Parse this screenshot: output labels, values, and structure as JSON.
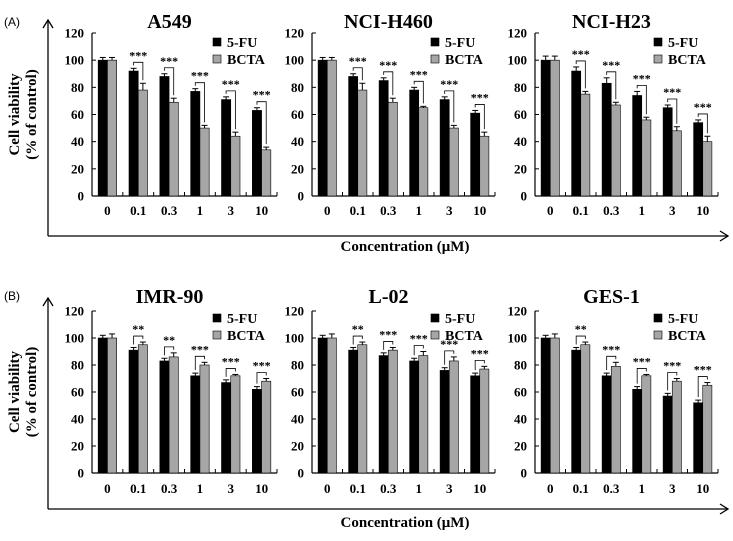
{
  "panel_labels": [
    "(A)",
    "(B)"
  ],
  "ylabel_line1": "Cell viability",
  "ylabel_line2": "(% of control)",
  "xlabel": "Concentration (μM)",
  "colors": {
    "5-FU": "#000000",
    "BCTA": "#a6a6a6"
  },
  "chart_data": [
    {
      "type": "bar",
      "panel": "A",
      "title": "A549",
      "categories": [
        "0",
        "0.1",
        "0.3",
        "1",
        "3",
        "10"
      ],
      "ylim": [
        0,
        120
      ],
      "yticks": [
        0,
        20,
        40,
        60,
        80,
        100,
        120
      ],
      "series": [
        {
          "name": "5-FU",
          "values": [
            100,
            92,
            88,
            77,
            71,
            63
          ],
          "errors": [
            2,
            2,
            2,
            2,
            2,
            2
          ]
        },
        {
          "name": "BCTA",
          "values": [
            100,
            78,
            69,
            50,
            44,
            34
          ],
          "errors": [
            2,
            5,
            3,
            2,
            3,
            2
          ]
        }
      ],
      "significance": [
        "",
        "***",
        "***",
        "***",
        "***",
        "***"
      ]
    },
    {
      "type": "bar",
      "panel": "A",
      "title": "NCI-H460",
      "categories": [
        "0",
        "0.1",
        "0.3",
        "1",
        "3",
        "10"
      ],
      "ylim": [
        0,
        120
      ],
      "yticks": [
        0,
        20,
        40,
        60,
        80,
        100,
        120
      ],
      "series": [
        {
          "name": "5-FU",
          "values": [
            100,
            88,
            85,
            78,
            71,
            61
          ],
          "errors": [
            2,
            2,
            2,
            2,
            2,
            2
          ]
        },
        {
          "name": "BCTA",
          "values": [
            100,
            78,
            69,
            65,
            50,
            44
          ],
          "errors": [
            2,
            5,
            3,
            1,
            2,
            3
          ]
        }
      ],
      "significance": [
        "",
        "***",
        "***",
        "***",
        "***",
        "***"
      ]
    },
    {
      "type": "bar",
      "panel": "A",
      "title": "NCI-H23",
      "categories": [
        "0",
        "0.1",
        "0.3",
        "1",
        "3",
        "10"
      ],
      "ylim": [
        0,
        120
      ],
      "yticks": [
        0,
        20,
        40,
        60,
        80,
        100,
        120
      ],
      "series": [
        {
          "name": "5-FU",
          "values": [
            100,
            92,
            83,
            74,
            65,
            54
          ],
          "errors": [
            3,
            3,
            4,
            3,
            2,
            2
          ]
        },
        {
          "name": "BCTA",
          "values": [
            100,
            75,
            67,
            56,
            48,
            40
          ],
          "errors": [
            3,
            2,
            2,
            2,
            3,
            4
          ]
        }
      ],
      "significance": [
        "",
        "***",
        "***",
        "***",
        "***",
        "***"
      ]
    },
    {
      "type": "bar",
      "panel": "B",
      "title": "IMR-90",
      "categories": [
        "0",
        "0.1",
        "0.3",
        "1",
        "3",
        "10"
      ],
      "ylim": [
        0,
        120
      ],
      "yticks": [
        0,
        20,
        40,
        60,
        80,
        100,
        120
      ],
      "series": [
        {
          "name": "5-FU",
          "values": [
            100,
            91,
            83,
            72,
            67,
            62
          ],
          "errors": [
            2,
            2,
            2,
            2,
            2,
            2
          ]
        },
        {
          "name": "BCTA",
          "values": [
            100,
            95,
            86,
            80,
            72,
            68
          ],
          "errors": [
            3,
            2,
            3,
            2,
            1,
            2
          ]
        }
      ],
      "significance": [
        "",
        "**",
        "**",
        "***",
        "***",
        "***"
      ]
    },
    {
      "type": "bar",
      "panel": "B",
      "title": "L-02",
      "categories": [
        "0",
        "0.1",
        "0.3",
        "1",
        "3",
        "10"
      ],
      "ylim": [
        0,
        120
      ],
      "yticks": [
        0,
        20,
        40,
        60,
        80,
        100,
        120
      ],
      "series": [
        {
          "name": "5-FU",
          "values": [
            100,
            91,
            87,
            83,
            76,
            72
          ],
          "errors": [
            2,
            2,
            2,
            2,
            2,
            2
          ]
        },
        {
          "name": "BCTA",
          "values": [
            100,
            95,
            91,
            87,
            83,
            77
          ],
          "errors": [
            3,
            2,
            2,
            3,
            3,
            2
          ]
        }
      ],
      "significance": [
        "",
        "**",
        "***",
        "***",
        "***",
        "***"
      ]
    },
    {
      "type": "bar",
      "panel": "B",
      "title": "GES-1",
      "categories": [
        "0",
        "0.1",
        "0.3",
        "1",
        "3",
        "10"
      ],
      "ylim": [
        0,
        120
      ],
      "yticks": [
        0,
        20,
        40,
        60,
        80,
        100,
        120
      ],
      "series": [
        {
          "name": "5-FU",
          "values": [
            100,
            91,
            72,
            62,
            57,
            52
          ],
          "errors": [
            2,
            2,
            2,
            2,
            2,
            2
          ]
        },
        {
          "name": "BCTA",
          "values": [
            100,
            95,
            79,
            72,
            68,
            65
          ],
          "errors": [
            3,
            2,
            3,
            1,
            2,
            2
          ]
        }
      ],
      "significance": [
        "",
        "**",
        "***",
        "***",
        "***",
        "***"
      ]
    }
  ]
}
